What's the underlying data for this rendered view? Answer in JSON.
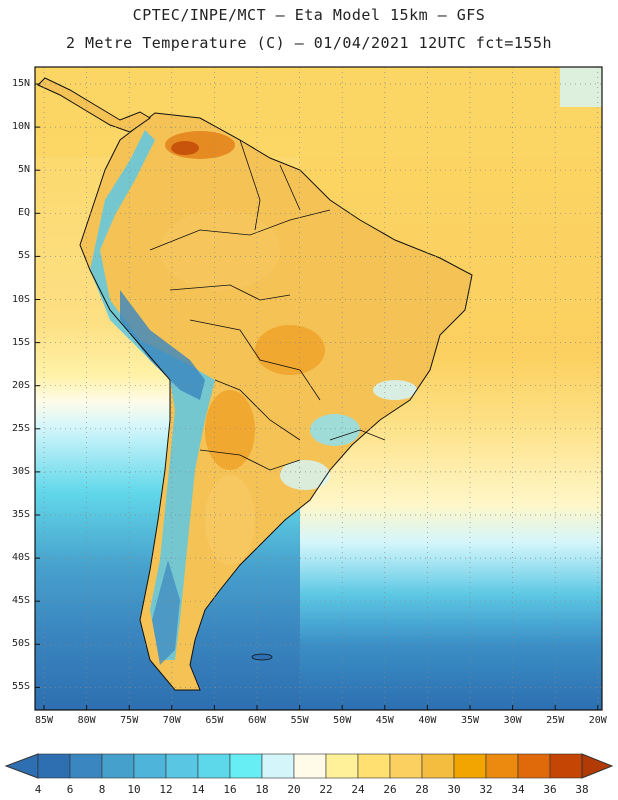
{
  "header": {
    "line1": "CPTEC/INPE/MCT –  Eta Model 15km – GFS",
    "line2": "2 Metre Temperature (C) – 01/04/2021 12UTC fct=155h"
  },
  "lat_labels": [
    "15N",
    "10N",
    "5N",
    "EQ",
    "5S",
    "10S",
    "15S",
    "20S",
    "25S",
    "30S",
    "35S",
    "40S",
    "45S",
    "50S",
    "55S"
  ],
  "lon_labels": [
    "85W",
    "80W",
    "75W",
    "70W",
    "65W",
    "60W",
    "55W",
    "50W",
    "45W",
    "40W",
    "35W",
    "30W",
    "25W",
    "20W"
  ],
  "colorbar": {
    "values": [
      "4",
      "6",
      "8",
      "10",
      "12",
      "14",
      "16",
      "18",
      "20",
      "22",
      "24",
      "26",
      "28",
      "30",
      "32",
      "34",
      "36",
      "38"
    ],
    "colors": [
      "#2d6fb0",
      "#3a86c0",
      "#46a0cc",
      "#4fb4d9",
      "#59c7e4",
      "#5dd8ea",
      "#66eef4",
      "#d4f6fb",
      "#fffbe8",
      "#fff19a",
      "#ffe070",
      "#fbd060",
      "#f5bd40",
      "#f2a400",
      "#ec8a10",
      "#e06a0a",
      "#c54504"
    ],
    "left_arrow_color": "#2d6fb0",
    "right_arrow_color": "#b23a04"
  }
}
